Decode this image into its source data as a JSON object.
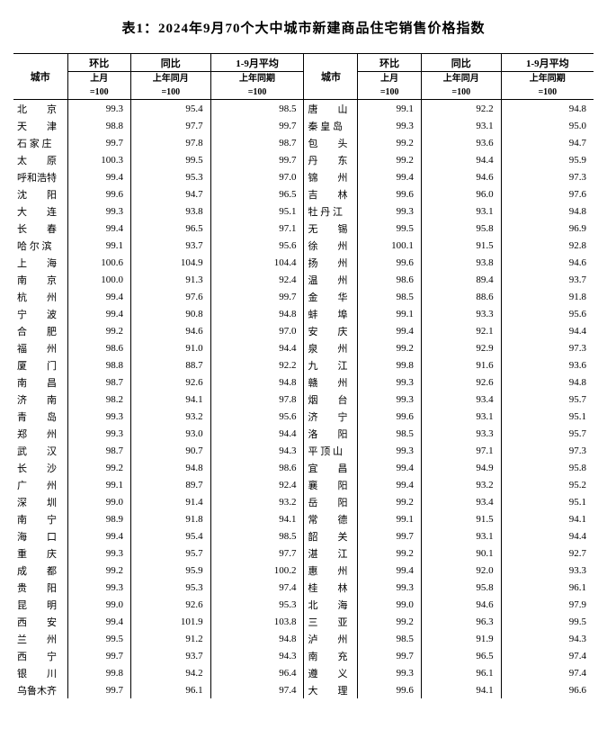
{
  "title": "表1：2024年9月70个大中城市新建商品住宅销售价格指数",
  "headers": {
    "city": "城市",
    "mom": "环比",
    "yoy": "同比",
    "avg": "1-9月平均",
    "sub1": "上月",
    "sub2": "上年同月",
    "sub3": "上年同期",
    "base": "=100"
  },
  "left": [
    {
      "c": "北　　京",
      "m": "99.3",
      "y": "95.4",
      "a": "98.5"
    },
    {
      "c": "天　　津",
      "m": "98.8",
      "y": "97.7",
      "a": "99.7"
    },
    {
      "c": "石 家 庄",
      "m": "99.7",
      "y": "97.8",
      "a": "98.7"
    },
    {
      "c": "太　　原",
      "m": "100.3",
      "y": "99.5",
      "a": "99.7"
    },
    {
      "c": "呼和浩特",
      "m": "99.4",
      "y": "95.3",
      "a": "97.0"
    },
    {
      "c": "沈　　阳",
      "m": "99.6",
      "y": "94.7",
      "a": "96.5"
    },
    {
      "c": "大　　连",
      "m": "99.3",
      "y": "93.8",
      "a": "95.1"
    },
    {
      "c": "长　　春",
      "m": "99.4",
      "y": "96.5",
      "a": "97.1"
    },
    {
      "c": "哈 尔 滨",
      "m": "99.1",
      "y": "93.7",
      "a": "95.6"
    },
    {
      "c": "上　　海",
      "m": "100.6",
      "y": "104.9",
      "a": "104.4"
    },
    {
      "c": "南　　京",
      "m": "100.0",
      "y": "91.3",
      "a": "92.4"
    },
    {
      "c": "杭　　州",
      "m": "99.4",
      "y": "97.6",
      "a": "99.7"
    },
    {
      "c": "宁　　波",
      "m": "99.4",
      "y": "90.8",
      "a": "94.8"
    },
    {
      "c": "合　　肥",
      "m": "99.2",
      "y": "94.6",
      "a": "97.0"
    },
    {
      "c": "福　　州",
      "m": "98.6",
      "y": "91.0",
      "a": "94.4"
    },
    {
      "c": "厦　　门",
      "m": "98.8",
      "y": "88.7",
      "a": "92.2"
    },
    {
      "c": "南　　昌",
      "m": "98.7",
      "y": "92.6",
      "a": "94.8"
    },
    {
      "c": "济　　南",
      "m": "98.2",
      "y": "94.1",
      "a": "97.8"
    },
    {
      "c": "青　　岛",
      "m": "99.3",
      "y": "93.2",
      "a": "95.6"
    },
    {
      "c": "郑　　州",
      "m": "99.3",
      "y": "93.0",
      "a": "94.4"
    },
    {
      "c": "武　　汉",
      "m": "98.7",
      "y": "90.7",
      "a": "94.3"
    },
    {
      "c": "长　　沙",
      "m": "99.2",
      "y": "94.8",
      "a": "98.6"
    },
    {
      "c": "广　　州",
      "m": "99.1",
      "y": "89.7",
      "a": "92.4"
    },
    {
      "c": "深　　圳",
      "m": "99.0",
      "y": "91.4",
      "a": "93.2"
    },
    {
      "c": "南　　宁",
      "m": "98.9",
      "y": "91.8",
      "a": "94.1"
    },
    {
      "c": "海　　口",
      "m": "99.4",
      "y": "95.4",
      "a": "98.5"
    },
    {
      "c": "重　　庆",
      "m": "99.3",
      "y": "95.7",
      "a": "97.7"
    },
    {
      "c": "成　　都",
      "m": "99.2",
      "y": "95.9",
      "a": "100.2"
    },
    {
      "c": "贵　　阳",
      "m": "99.3",
      "y": "95.3",
      "a": "97.4"
    },
    {
      "c": "昆　　明",
      "m": "99.0",
      "y": "92.6",
      "a": "95.3"
    },
    {
      "c": "西　　安",
      "m": "99.4",
      "y": "101.9",
      "a": "103.8"
    },
    {
      "c": "兰　　州",
      "m": "99.5",
      "y": "91.2",
      "a": "94.8"
    },
    {
      "c": "西　　宁",
      "m": "99.7",
      "y": "93.7",
      "a": "94.3"
    },
    {
      "c": "银　　川",
      "m": "99.8",
      "y": "94.2",
      "a": "96.4"
    },
    {
      "c": "乌鲁木齐",
      "m": "99.7",
      "y": "96.1",
      "a": "97.4"
    }
  ],
  "right": [
    {
      "c": "唐　　山",
      "m": "99.1",
      "y": "92.2",
      "a": "94.8"
    },
    {
      "c": "秦 皇 岛",
      "m": "99.3",
      "y": "93.1",
      "a": "95.0"
    },
    {
      "c": "包　　头",
      "m": "99.2",
      "y": "93.6",
      "a": "94.7"
    },
    {
      "c": "丹　　东",
      "m": "99.2",
      "y": "94.4",
      "a": "95.9"
    },
    {
      "c": "锦　　州",
      "m": "99.4",
      "y": "94.6",
      "a": "97.3"
    },
    {
      "c": "吉　　林",
      "m": "99.6",
      "y": "96.0",
      "a": "97.6"
    },
    {
      "c": "牡 丹 江",
      "m": "99.3",
      "y": "93.1",
      "a": "94.8"
    },
    {
      "c": "无　　锡",
      "m": "99.5",
      "y": "95.8",
      "a": "96.9"
    },
    {
      "c": "徐　　州",
      "m": "100.1",
      "y": "91.5",
      "a": "92.8"
    },
    {
      "c": "扬　　州",
      "m": "99.6",
      "y": "93.8",
      "a": "94.6"
    },
    {
      "c": "温　　州",
      "m": "98.6",
      "y": "89.4",
      "a": "93.7"
    },
    {
      "c": "金　　华",
      "m": "98.5",
      "y": "88.6",
      "a": "91.8"
    },
    {
      "c": "蚌　　埠",
      "m": "99.1",
      "y": "93.3",
      "a": "95.6"
    },
    {
      "c": "安　　庆",
      "m": "99.4",
      "y": "92.1",
      "a": "94.4"
    },
    {
      "c": "泉　　州",
      "m": "99.2",
      "y": "92.9",
      "a": "97.3"
    },
    {
      "c": "九　　江",
      "m": "99.8",
      "y": "91.6",
      "a": "93.6"
    },
    {
      "c": "赣　　州",
      "m": "99.3",
      "y": "92.6",
      "a": "94.8"
    },
    {
      "c": "烟　　台",
      "m": "99.3",
      "y": "93.4",
      "a": "95.7"
    },
    {
      "c": "济　　宁",
      "m": "99.6",
      "y": "93.1",
      "a": "95.1"
    },
    {
      "c": "洛　　阳",
      "m": "98.5",
      "y": "93.3",
      "a": "95.7"
    },
    {
      "c": "平 顶 山",
      "m": "99.3",
      "y": "97.1",
      "a": "97.3"
    },
    {
      "c": "宜　　昌",
      "m": "99.4",
      "y": "94.9",
      "a": "95.8"
    },
    {
      "c": "襄　　阳",
      "m": "99.4",
      "y": "93.2",
      "a": "95.2"
    },
    {
      "c": "岳　　阳",
      "m": "99.2",
      "y": "93.4",
      "a": "95.1"
    },
    {
      "c": "常　　德",
      "m": "99.1",
      "y": "91.5",
      "a": "94.1"
    },
    {
      "c": "韶　　关",
      "m": "99.7",
      "y": "93.1",
      "a": "94.4"
    },
    {
      "c": "湛　　江",
      "m": "99.2",
      "y": "90.1",
      "a": "92.7"
    },
    {
      "c": "惠　　州",
      "m": "99.4",
      "y": "92.0",
      "a": "93.3"
    },
    {
      "c": "桂　　林",
      "m": "99.3",
      "y": "95.8",
      "a": "96.1"
    },
    {
      "c": "北　　海",
      "m": "99.0",
      "y": "94.6",
      "a": "97.9"
    },
    {
      "c": "三　　亚",
      "m": "99.2",
      "y": "96.3",
      "a": "99.5"
    },
    {
      "c": "泸　　州",
      "m": "98.5",
      "y": "91.9",
      "a": "94.3"
    },
    {
      "c": "南　　充",
      "m": "99.7",
      "y": "96.5",
      "a": "97.4"
    },
    {
      "c": "遵　　义",
      "m": "99.3",
      "y": "96.1",
      "a": "97.4"
    },
    {
      "c": "大　　理",
      "m": "99.6",
      "y": "94.1",
      "a": "96.6"
    }
  ]
}
